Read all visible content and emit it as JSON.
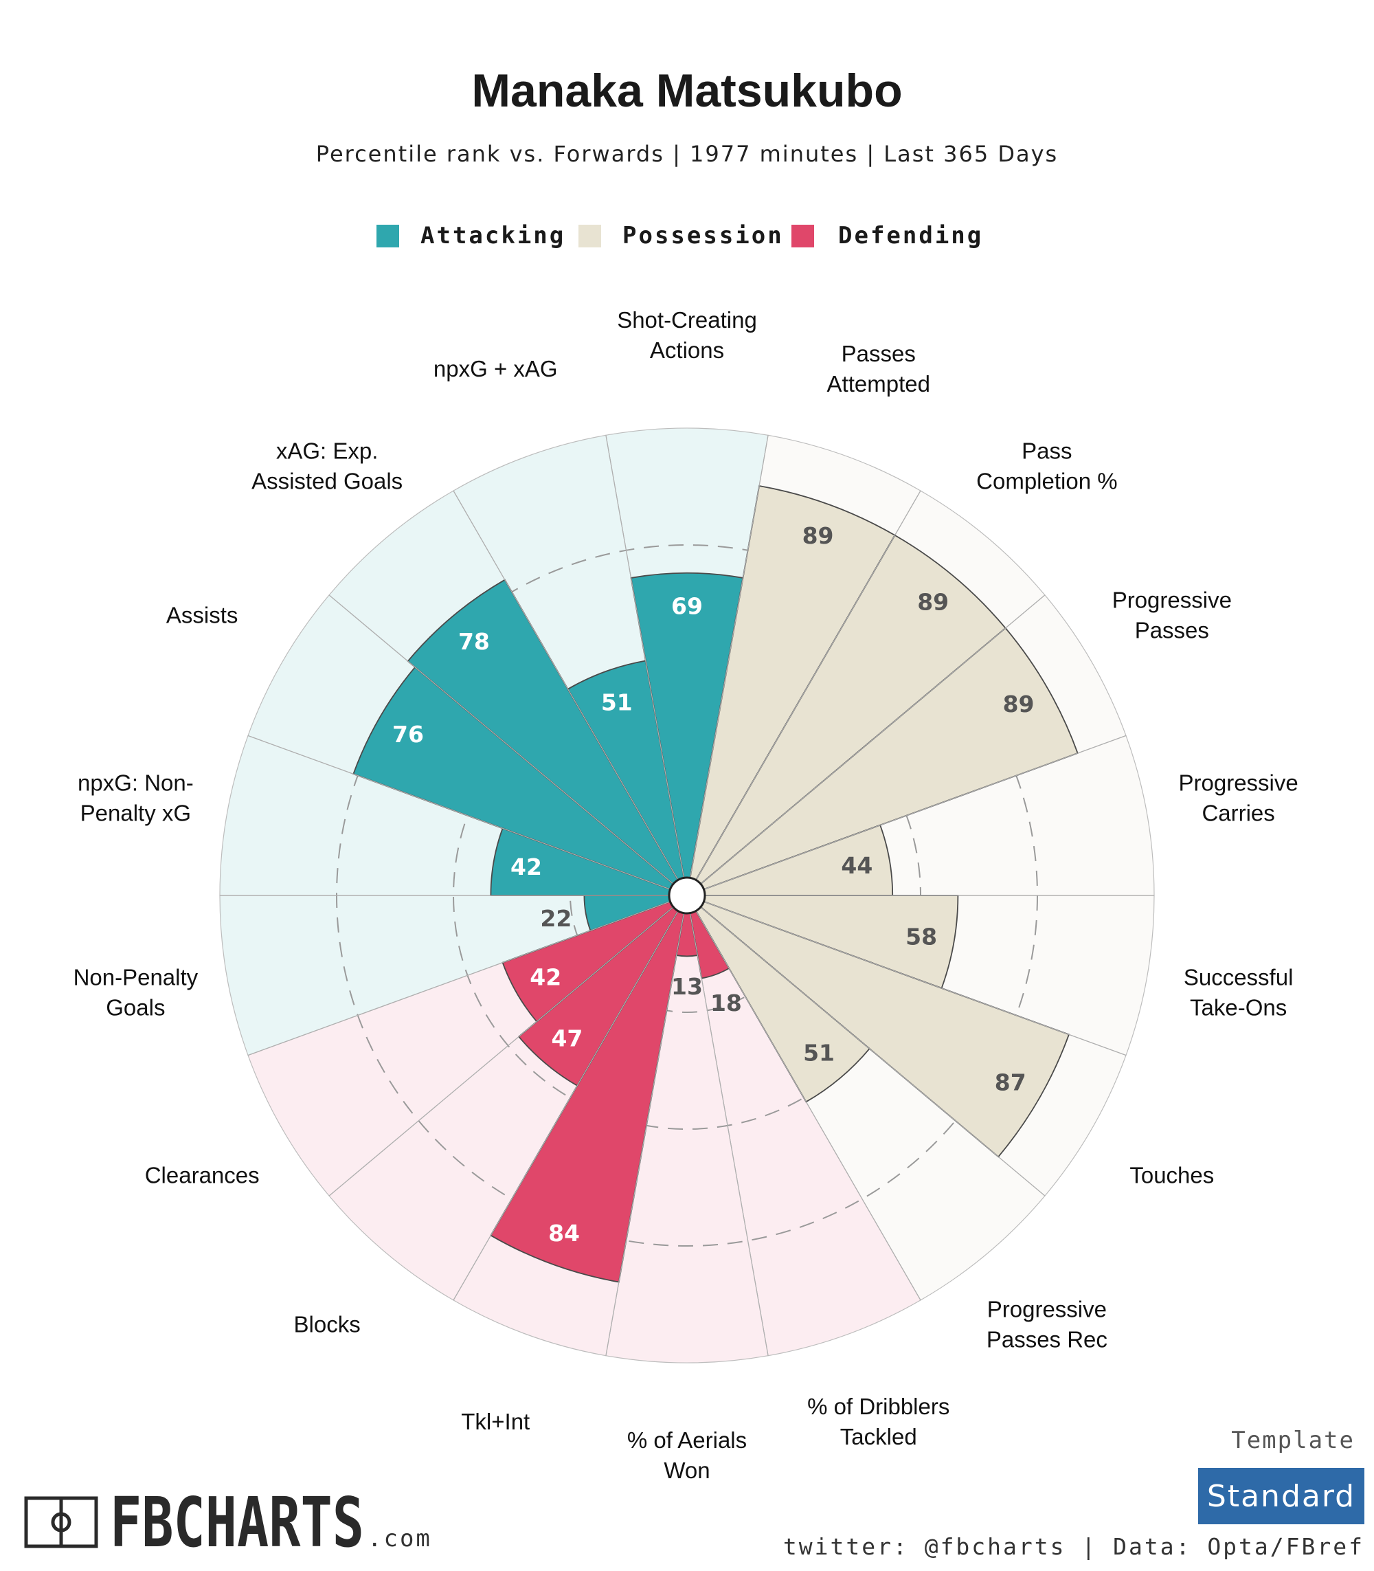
{
  "header": {
    "title": "Manaka Matsukubo",
    "subtitle": "Percentile rank vs. Forwards | 1977 minutes | Last 365 Days"
  },
  "legend": [
    {
      "label": "Attacking",
      "color": "#2fa7ae"
    },
    {
      "label": "Possession",
      "color": "#e8e3d2"
    },
    {
      "label": "Defending",
      "color": "#e0476a"
    }
  ],
  "colors": {
    "attacking_bar": "#2fa7ae",
    "attacking_bg": "#e9f6f6",
    "possession_bar": "#e8e3d2",
    "possession_bg": "#fbfaf8",
    "defending_bar": "#e0476a",
    "defending_bg": "#fcedf1",
    "value_text_dark": "#555555",
    "value_text_light": "#ffffff",
    "template_box": "#2e6aa8"
  },
  "chart_data": {
    "type": "polar-bar",
    "rlim": [
      0,
      100
    ],
    "gridlines": [
      25,
      50,
      75
    ],
    "grid": true,
    "legend_position": "top",
    "categories": [
      {
        "label": "Shot-Creating\nActions",
        "group": "Attacking",
        "value": 69
      },
      {
        "label": "Passes\nAttempted",
        "group": "Possession",
        "value": 89
      },
      {
        "label": "Pass\nCompletion %",
        "group": "Possession",
        "value": 89
      },
      {
        "label": "Progressive\nPasses",
        "group": "Possession",
        "value": 89
      },
      {
        "label": "Progressive\nCarries",
        "group": "Possession",
        "value": 44
      },
      {
        "label": "Successful\nTake-Ons",
        "group": "Possession",
        "value": 58
      },
      {
        "label": "Touches",
        "group": "Possession",
        "value": 87
      },
      {
        "label": "Progressive\nPasses Rec",
        "group": "Possession",
        "value": 51
      },
      {
        "label": "% of Dribblers\nTackled",
        "group": "Defending",
        "value": 18
      },
      {
        "label": "% of Aerials\nWon",
        "group": "Defending",
        "value": 13
      },
      {
        "label": "Tkl+Int",
        "group": "Defending",
        "value": 84
      },
      {
        "label": "Blocks",
        "group": "Defending",
        "value": 47
      },
      {
        "label": "Clearances",
        "group": "Defending",
        "value": 42
      },
      {
        "label": "Non-Penalty\nGoals",
        "group": "Attacking",
        "value": 22
      },
      {
        "label": "npxG: Non-\nPenalty xG",
        "group": "Attacking",
        "value": 42
      },
      {
        "label": "Assists",
        "group": "Attacking",
        "value": 76
      },
      {
        "label": "xAG: Exp.\nAssisted Goals",
        "group": "Attacking",
        "value": 78
      },
      {
        "label": "npxG + xAG",
        "group": "Attacking",
        "value": 51
      }
    ]
  },
  "footer": {
    "template_label": "Template",
    "template_value": "Standard",
    "credit": "twitter: @fbcharts | Data: Opta/FBref",
    "brand": "FBCHARTS",
    "brand_suffix": ".com"
  }
}
